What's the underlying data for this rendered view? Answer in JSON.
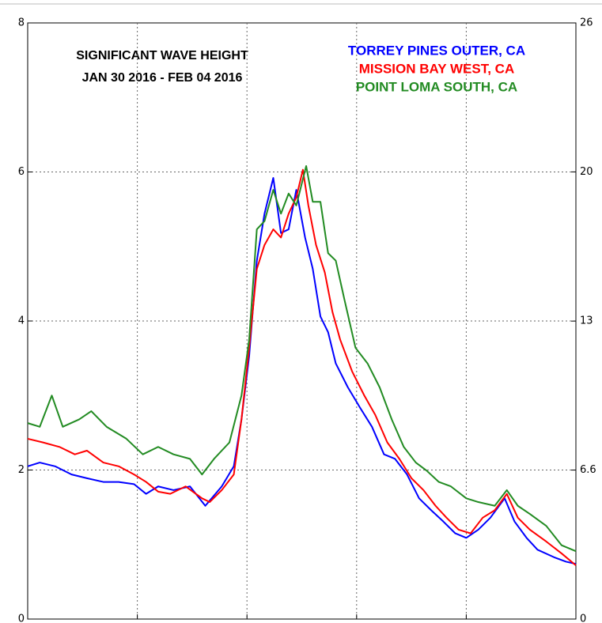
{
  "chart_data": {
    "type": "line",
    "title": "SIGNIFICANT WAVE HEIGHT",
    "subtitle": "JAN 30 2016 - FEB 04 2016",
    "xlim": [
      0,
      5
    ],
    "xticks": [
      1,
      2,
      3,
      4
    ],
    "ylim": [
      0,
      8
    ],
    "yticks": [
      0,
      2,
      4,
      6,
      8
    ],
    "y2lim": [
      0,
      26.25
    ],
    "y2ticks": [
      0,
      {
        "value": 6.56,
        "label": "6.6"
      },
      {
        "value": 13.12,
        "label": "13"
      },
      {
        "value": 19.69,
        "label": "20"
      },
      {
        "value": 26.25,
        "label": "26"
      }
    ],
    "grid": true,
    "series": [
      {
        "name": "TORREY PINES OUTER, CA",
        "color": "#0000ff",
        "x": [
          0,
          0.11,
          0.25,
          0.4,
          0.54,
          0.69,
          0.83,
          0.97,
          1.08,
          1.19,
          1.33,
          1.48,
          1.62,
          1.77,
          1.88,
          1.95,
          2.02,
          2.09,
          2.16,
          2.24,
          2.31,
          2.38,
          2.45,
          2.53,
          2.6,
          2.67,
          2.74,
          2.81,
          2.92,
          3.03,
          3.14,
          3.25,
          3.35,
          3.46,
          3.57,
          3.68,
          3.79,
          3.9,
          4.0,
          4.11,
          4.22,
          4.35,
          4.44,
          4.55,
          4.65,
          4.8,
          4.91,
          5.0
        ],
        "values": [
          2.05,
          2.1,
          2.05,
          1.94,
          1.89,
          1.84,
          1.84,
          1.81,
          1.68,
          1.78,
          1.73,
          1.78,
          1.52,
          1.78,
          2.05,
          2.68,
          3.53,
          4.81,
          5.44,
          5.92,
          5.18,
          5.23,
          5.76,
          5.12,
          4.7,
          4.06,
          3.85,
          3.43,
          3.11,
          2.84,
          2.58,
          2.21,
          2.15,
          1.94,
          1.62,
          1.46,
          1.31,
          1.15,
          1.09,
          1.2,
          1.36,
          1.62,
          1.31,
          1.09,
          0.93,
          0.83,
          0.77,
          0.74
        ]
      },
      {
        "name": "MISSION BAY WEST, CA",
        "color": "#ff0000",
        "x": [
          0,
          0.14,
          0.29,
          0.43,
          0.54,
          0.69,
          0.83,
          0.97,
          1.08,
          1.19,
          1.3,
          1.44,
          1.59,
          1.66,
          1.77,
          1.88,
          1.95,
          2.02,
          2.09,
          2.16,
          2.24,
          2.31,
          2.38,
          2.45,
          2.51,
          2.56,
          2.63,
          2.71,
          2.78,
          2.85,
          2.96,
          3.07,
          3.17,
          3.28,
          3.39,
          3.5,
          3.61,
          3.72,
          3.82,
          3.93,
          4.04,
          4.15,
          4.26,
          4.37,
          4.47,
          4.58,
          4.73,
          4.87,
          5.0
        ],
        "values": [
          2.42,
          2.37,
          2.31,
          2.21,
          2.26,
          2.1,
          2.05,
          1.94,
          1.84,
          1.71,
          1.68,
          1.78,
          1.62,
          1.57,
          1.73,
          1.94,
          2.68,
          3.64,
          4.7,
          5.02,
          5.23,
          5.12,
          5.44,
          5.66,
          6.03,
          5.55,
          5.02,
          4.65,
          4.12,
          3.75,
          3.32,
          3.0,
          2.74,
          2.37,
          2.15,
          1.89,
          1.73,
          1.52,
          1.36,
          1.2,
          1.15,
          1.36,
          1.46,
          1.68,
          1.36,
          1.2,
          1.04,
          0.88,
          0.72
        ]
      },
      {
        "name": "POINT LOMA SOUTH, CA",
        "color": "#228b22",
        "x": [
          0,
          0.11,
          0.22,
          0.32,
          0.47,
          0.58,
          0.72,
          0.9,
          1.05,
          1.19,
          1.33,
          1.48,
          1.59,
          1.7,
          1.84,
          1.95,
          2.02,
          2.09,
          2.16,
          2.24,
          2.31,
          2.38,
          2.45,
          2.54,
          2.6,
          2.67,
          2.74,
          2.81,
          2.89,
          2.99,
          3.1,
          3.21,
          3.32,
          3.43,
          3.54,
          3.64,
          3.75,
          3.86,
          4.0,
          4.11,
          4.26,
          4.37,
          4.47,
          4.58,
          4.73,
          4.87,
          5.0
        ],
        "values": [
          2.63,
          2.58,
          3.0,
          2.58,
          2.68,
          2.79,
          2.58,
          2.42,
          2.21,
          2.31,
          2.21,
          2.15,
          1.94,
          2.15,
          2.37,
          3.0,
          3.75,
          5.23,
          5.34,
          5.76,
          5.44,
          5.71,
          5.55,
          6.08,
          5.6,
          5.6,
          4.91,
          4.81,
          4.28,
          3.64,
          3.43,
          3.11,
          2.68,
          2.31,
          2.1,
          1.99,
          1.84,
          1.78,
          1.62,
          1.57,
          1.52,
          1.73,
          1.52,
          1.41,
          1.25,
          0.99,
          0.91
        ]
      }
    ]
  }
}
